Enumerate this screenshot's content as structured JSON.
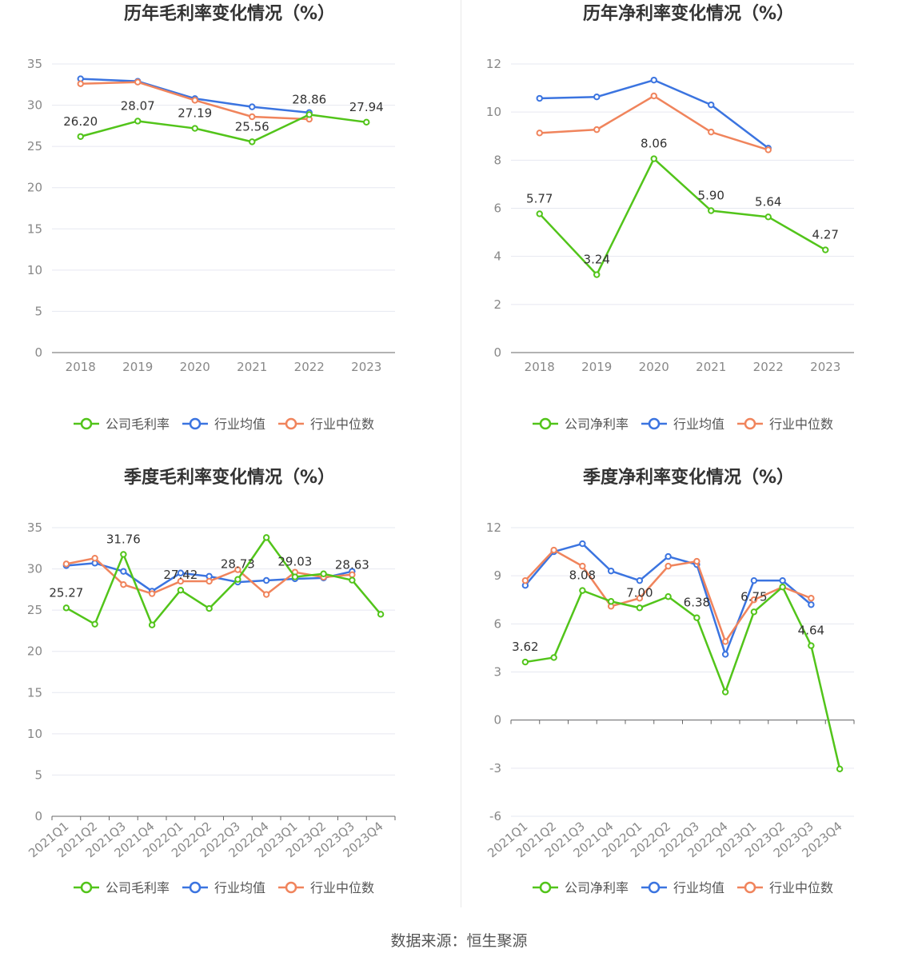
{
  "footer": "数据来源：恒生聚源",
  "colors": {
    "company": "#52c41a",
    "avg": "#3b74e0",
    "median": "#f0845c"
  },
  "chart_data": [
    {
      "type": "line",
      "title": "历年毛利率变化情况（%）",
      "categories": [
        "2018",
        "2019",
        "2020",
        "2021",
        "2022",
        "2023"
      ],
      "ylim": [
        0,
        35
      ],
      "yticks": [
        0,
        5,
        10,
        15,
        20,
        25,
        30,
        35
      ],
      "grid": true,
      "legend_position": "bottom",
      "series": [
        {
          "name": "公司毛利率",
          "values": [
            26.2,
            28.07,
            27.19,
            25.56,
            28.86,
            27.94
          ]
        },
        {
          "name": "行业均值",
          "values": [
            33.2,
            32.9,
            30.8,
            29.8,
            29.1,
            null
          ]
        },
        {
          "name": "行业中位数",
          "values": [
            32.6,
            32.8,
            30.6,
            28.6,
            28.3,
            null
          ]
        }
      ],
      "labels": [
        "26.20",
        "28.07",
        "27.19",
        "25.56",
        "28.86",
        "27.94"
      ]
    },
    {
      "type": "line",
      "title": "历年净利率变化情况（%）",
      "categories": [
        "2018",
        "2019",
        "2020",
        "2021",
        "2022",
        "2023"
      ],
      "ylim": [
        0,
        12
      ],
      "yticks": [
        0,
        2,
        4,
        6,
        8,
        10,
        12
      ],
      "grid": true,
      "legend_position": "bottom",
      "series": [
        {
          "name": "公司净利率",
          "values": [
            5.77,
            3.24,
            8.06,
            5.9,
            5.64,
            4.27
          ]
        },
        {
          "name": "行业均值",
          "values": [
            10.57,
            10.63,
            11.33,
            10.3,
            8.5,
            null
          ]
        },
        {
          "name": "行业中位数",
          "values": [
            9.13,
            9.27,
            10.67,
            9.17,
            8.43,
            null
          ]
        }
      ],
      "labels": [
        "5.77",
        "3.24",
        "8.06",
        "5.90",
        "5.64",
        "4.27"
      ]
    },
    {
      "type": "line",
      "title": "季度毛利率变化情况（%）",
      "categories": [
        "2021Q1",
        "2021Q2",
        "2021Q3",
        "2021Q4",
        "2022Q1",
        "2022Q2",
        "2022Q3",
        "2022Q4",
        "2023Q1",
        "2023Q2",
        "2023Q3",
        "2023Q4"
      ],
      "ylim": [
        0,
        35
      ],
      "yticks": [
        0,
        5,
        10,
        15,
        20,
        25,
        30,
        35
      ],
      "grid": true,
      "legend_position": "bottom",
      "series": [
        {
          "name": "公司毛利率",
          "values": [
            25.27,
            23.3,
            31.76,
            23.2,
            27.42,
            25.2,
            28.73,
            33.8,
            29.03,
            29.4,
            28.63,
            24.5
          ]
        },
        {
          "name": "行业均值",
          "values": [
            30.4,
            30.7,
            29.7,
            27.3,
            29.5,
            29.1,
            28.4,
            28.6,
            28.8,
            28.9,
            29.7,
            null
          ]
        },
        {
          "name": "行业中位数",
          "values": [
            30.6,
            31.3,
            28.1,
            27.0,
            28.5,
            28.5,
            29.9,
            26.9,
            29.6,
            29.0,
            29.3,
            null
          ]
        }
      ],
      "labels": [
        "25.27",
        "",
        "31.76",
        "",
        "27.42",
        "",
        "28.73",
        "",
        "29.03",
        "",
        "28.63",
        ""
      ]
    },
    {
      "type": "line",
      "title": "季度净利率变化情况（%）",
      "categories": [
        "2021Q1",
        "2021Q2",
        "2021Q3",
        "2021Q4",
        "2022Q1",
        "2022Q2",
        "2022Q3",
        "2022Q4",
        "2023Q1",
        "2023Q2",
        "2023Q3",
        "2023Q4"
      ],
      "ylim": [
        -6,
        12
      ],
      "yticks": [
        -6,
        -3,
        0,
        3,
        6,
        9,
        12
      ],
      "grid": true,
      "legend_position": "bottom",
      "series": [
        {
          "name": "公司净利率",
          "values": [
            3.62,
            3.9,
            8.08,
            7.4,
            7.0,
            7.7,
            6.38,
            1.75,
            6.75,
            8.3,
            4.64,
            -3.05
          ]
        },
        {
          "name": "行业均值",
          "values": [
            8.4,
            10.5,
            11.0,
            9.3,
            8.7,
            10.2,
            9.7,
            4.1,
            8.7,
            8.7,
            7.2,
            null
          ]
        },
        {
          "name": "行业中位数",
          "values": [
            8.7,
            10.6,
            9.6,
            7.1,
            7.6,
            9.6,
            9.9,
            4.9,
            7.5,
            8.3,
            7.6,
            null
          ]
        }
      ],
      "labels": [
        "3.62",
        "",
        "8.08",
        "",
        "7.00",
        "",
        "6.38",
        "",
        "6.75",
        "",
        "4.64",
        ""
      ]
    }
  ]
}
